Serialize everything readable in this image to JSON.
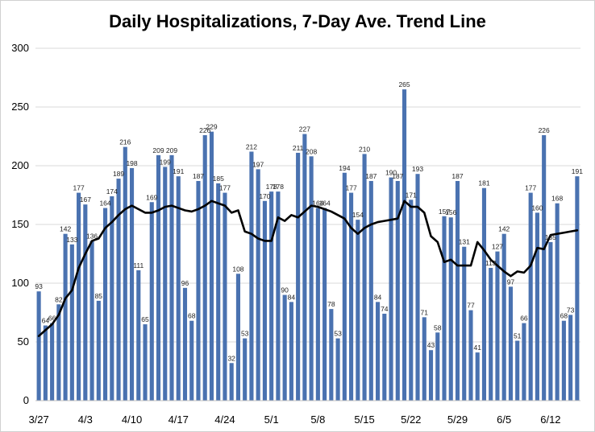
{
  "chart_data": {
    "type": "bar",
    "title": "Daily Hospitalizations, 7-Day Ave. Trend Line",
    "xlabel": "",
    "ylabel": "",
    "ylim": [
      0,
      300
    ],
    "yticks": [
      0,
      50,
      100,
      150,
      200,
      250,
      300
    ],
    "x_tick_labels": [
      {
        "index": 0,
        "label": "3/27"
      },
      {
        "index": 7,
        "label": "4/3"
      },
      {
        "index": 14,
        "label": "4/10"
      },
      {
        "index": 21,
        "label": "4/17"
      },
      {
        "index": 28,
        "label": "4/24"
      },
      {
        "index": 35,
        "label": "5/1"
      },
      {
        "index": 42,
        "label": "5/8"
      },
      {
        "index": 49,
        "label": "5/15"
      },
      {
        "index": 56,
        "label": "5/22"
      },
      {
        "index": 63,
        "label": "5/29"
      },
      {
        "index": 70,
        "label": "6/5"
      },
      {
        "index": 77,
        "label": "6/12"
      }
    ],
    "gridlines": true,
    "bar_color": "#4a72b0",
    "line_color": "#000000",
    "series": [
      {
        "type": "bar",
        "values": [
          93,
          64,
          66,
          82,
          142,
          133,
          177,
          167,
          136,
          85,
          164,
          174,
          189,
          216,
          198,
          111,
          65,
          169,
          209,
          199,
          209,
          191,
          96,
          68,
          187,
          226,
          229,
          185,
          177,
          32,
          108,
          53,
          212,
          197,
          170,
          178,
          178,
          90,
          84,
          211,
          227,
          208,
          164,
          164,
          78,
          53,
          194,
          177,
          154,
          210,
          187,
          84,
          74,
          190,
          187,
          265,
          171,
          193,
          71,
          43,
          58,
          157,
          156,
          187,
          131,
          77,
          41,
          181,
          113,
          127,
          142,
          97,
          51,
          66,
          177,
          160,
          226,
          135,
          168,
          68,
          73,
          191
        ],
        "labels": [
          "93",
          "64",
          "66",
          "82",
          "142",
          "133",
          "177",
          "167",
          "136",
          "85",
          "164",
          "174",
          "189",
          "216",
          "198",
          "111",
          "65",
          "169",
          "209",
          "199",
          "209",
          "191",
          "96",
          "68",
          "187",
          "226",
          "229",
          "185",
          "177",
          "32",
          "108",
          "53",
          "212",
          "197",
          "170",
          "178",
          "178",
          "90",
          "84",
          "211",
          "227",
          "208",
          "164",
          "164",
          "78",
          "53",
          "194",
          "177",
          "154",
          "210",
          "187",
          "84",
          "74",
          "190",
          "187",
          "265",
          "171",
          "193",
          "71",
          "43",
          "58",
          "157",
          "156",
          "187",
          "131",
          "77",
          "41",
          "181",
          "113",
          "127",
          "142",
          "97",
          "51",
          "66",
          "177",
          "160",
          "226",
          "135",
          "168",
          "68",
          "73",
          "191"
        ]
      },
      {
        "type": "line",
        "values": [
          55,
          60,
          65,
          73,
          87,
          94,
          113,
          125,
          136,
          138,
          147,
          152,
          158,
          163,
          166,
          163,
          160,
          160,
          162,
          165,
          166,
          164,
          162,
          161,
          163,
          166,
          170,
          168,
          166,
          160,
          162,
          144,
          142,
          138,
          136,
          136,
          156,
          153,
          158,
          156,
          161,
          166,
          165,
          163,
          161,
          158,
          155,
          147,
          142,
          147,
          150,
          152,
          153,
          154,
          155,
          170,
          165,
          165,
          160,
          140,
          135,
          118,
          120,
          115,
          115,
          115,
          135,
          128,
          120,
          115,
          110,
          106,
          110,
          109,
          115,
          130,
          129,
          141,
          142,
          143,
          144,
          145
        ]
      }
    ]
  }
}
